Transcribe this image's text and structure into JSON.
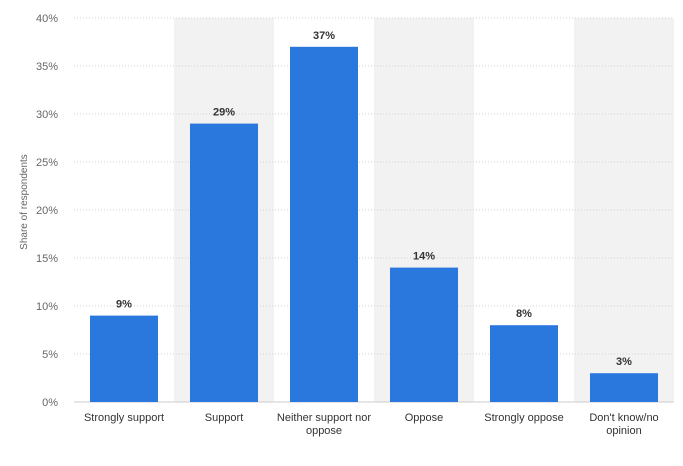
{
  "chart_data": {
    "type": "bar",
    "title": "",
    "xlabel": "",
    "ylabel": "Share of respondents",
    "ylim": [
      0,
      40
    ],
    "y_ticks": [
      "0%",
      "5%",
      "10%",
      "15%",
      "20%",
      "25%",
      "30%",
      "35%",
      "40%"
    ],
    "categories": [
      [
        "Strongly support"
      ],
      [
        "Support"
      ],
      [
        "Neither support nor",
        "oppose"
      ],
      [
        "Oppose"
      ],
      [
        "Strongly oppose"
      ],
      [
        "Don't know/no",
        "opinion"
      ]
    ],
    "values": [
      9,
      29,
      37,
      14,
      8,
      3
    ],
    "value_labels": [
      "9%",
      "29%",
      "37%",
      "14%",
      "8%",
      "3%"
    ],
    "grid": true,
    "bar_color": "#2a78de",
    "band_color": "#f2f2f2"
  }
}
